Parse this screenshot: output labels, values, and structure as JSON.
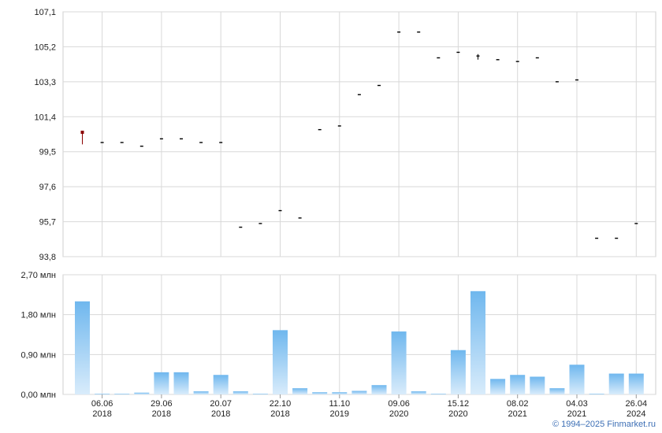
{
  "copyright": "© 1994–2025 Finmarket.ru",
  "chart_data": [
    {
      "type": "ohlc",
      "grid": true,
      "ylim": [
        93.8,
        107.1
      ],
      "y_ticks": [
        "107,1",
        "105,2",
        "103,3",
        "101,4",
        "99,5",
        "97,6",
        "95,7",
        "93,8"
      ],
      "y_tick_values": [
        107.1,
        105.2,
        103.3,
        101.4,
        99.5,
        97.6,
        95.7,
        93.8
      ],
      "points": [
        {
          "i": 0,
          "open": 100.5,
          "high": 100.6,
          "low": 99.9,
          "close": 100.6,
          "color": "#8b0000"
        },
        {
          "i": 1,
          "open": 100.0,
          "high": 100.0,
          "low": 100.0,
          "close": 100.0
        },
        {
          "i": 2,
          "open": 100.0,
          "high": 100.0,
          "low": 100.0,
          "close": 100.0
        },
        {
          "i": 3,
          "open": 99.8,
          "high": 99.8,
          "low": 99.8,
          "close": 99.8
        },
        {
          "i": 4,
          "open": 100.2,
          "high": 100.2,
          "low": 100.2,
          "close": 100.2
        },
        {
          "i": 5,
          "open": 100.2,
          "high": 100.2,
          "low": 100.2,
          "close": 100.2
        },
        {
          "i": 6,
          "open": 100.0,
          "high": 100.0,
          "low": 100.0,
          "close": 100.0
        },
        {
          "i": 7,
          "open": 100.0,
          "high": 100.0,
          "low": 100.0,
          "close": 100.0
        },
        {
          "i": 8,
          "open": 95.4,
          "high": 95.4,
          "low": 95.4,
          "close": 95.4
        },
        {
          "i": 9,
          "open": 95.6,
          "high": 95.6,
          "low": 95.6,
          "close": 95.6
        },
        {
          "i": 10,
          "open": 96.3,
          "high": 96.3,
          "low": 96.3,
          "close": 96.3
        },
        {
          "i": 11,
          "open": 95.9,
          "high": 95.9,
          "low": 95.9,
          "close": 95.9
        },
        {
          "i": 12,
          "open": 100.7,
          "high": 100.7,
          "low": 100.7,
          "close": 100.7
        },
        {
          "i": 13,
          "open": 100.9,
          "high": 100.9,
          "low": 100.9,
          "close": 100.9
        },
        {
          "i": 14,
          "open": 102.6,
          "high": 102.6,
          "low": 102.6,
          "close": 102.6
        },
        {
          "i": 15,
          "open": 103.1,
          "high": 103.1,
          "low": 103.1,
          "close": 103.1
        },
        {
          "i": 16,
          "open": 106.0,
          "high": 106.0,
          "low": 106.0,
          "close": 106.0
        },
        {
          "i": 17,
          "open": 106.0,
          "high": 106.0,
          "low": 106.0,
          "close": 106.0
        },
        {
          "i": 18,
          "open": 104.6,
          "high": 104.6,
          "low": 104.6,
          "close": 104.6
        },
        {
          "i": 19,
          "open": 104.9,
          "high": 104.9,
          "low": 104.9,
          "close": 104.9
        },
        {
          "i": 20,
          "open": 104.6,
          "high": 104.8,
          "low": 104.5,
          "close": 104.7
        },
        {
          "i": 21,
          "open": 104.5,
          "high": 104.5,
          "low": 104.5,
          "close": 104.5
        },
        {
          "i": 22,
          "open": 104.4,
          "high": 104.4,
          "low": 104.4,
          "close": 104.4
        },
        {
          "i": 23,
          "open": 104.6,
          "high": 104.6,
          "low": 104.6,
          "close": 104.6
        },
        {
          "i": 24,
          "open": 103.3,
          "high": 103.3,
          "low": 103.3,
          "close": 103.3
        },
        {
          "i": 25,
          "open": 103.4,
          "high": 103.4,
          "low": 103.4,
          "close": 103.4
        },
        {
          "i": 26,
          "open": 94.8,
          "high": 94.8,
          "low": 94.8,
          "close": 94.8
        },
        {
          "i": 27,
          "open": 94.8,
          "high": 94.8,
          "low": 94.8,
          "close": 94.8
        },
        {
          "i": 28,
          "open": 95.6,
          "high": 95.6,
          "low": 95.6,
          "close": 95.6
        }
      ]
    },
    {
      "type": "bar",
      "grid": true,
      "ylim": [
        0,
        2.7
      ],
      "y_ticks": [
        "2,70 млн",
        "1,80 млн",
        "0,90 млн",
        "0,00 млн"
      ],
      "y_tick_values": [
        2.7,
        1.8,
        0.9,
        0.0
      ],
      "values": [
        2.1,
        0.01,
        0.01,
        0.04,
        0.5,
        0.5,
        0.07,
        0.44,
        0.07,
        0.01,
        1.45,
        0.14,
        0.05,
        0.05,
        0.08,
        0.21,
        1.42,
        0.07,
        0.01,
        1.0,
        2.33,
        0.35,
        0.44,
        0.4,
        0.14,
        0.67,
        0.01,
        0.47,
        0.47
      ],
      "bar_color": "#6fb7ee"
    }
  ],
  "x_axis": {
    "ticks": [
      {
        "i": 1,
        "day": "06.06",
        "year": "2018"
      },
      {
        "i": 4,
        "day": "29.06",
        "year": "2018"
      },
      {
        "i": 7,
        "day": "20.07",
        "year": "2018"
      },
      {
        "i": 10,
        "day": "22.10",
        "year": "2018"
      },
      {
        "i": 13,
        "day": "11.10",
        "year": "2019"
      },
      {
        "i": 16,
        "day": "09.06",
        "year": "2020"
      },
      {
        "i": 19,
        "day": "15.12",
        "year": "2020"
      },
      {
        "i": 22,
        "day": "08.02",
        "year": "2021"
      },
      {
        "i": 25,
        "day": "04.03",
        "year": "2021"
      },
      {
        "i": 28,
        "day": "26.04",
        "year": "2024"
      }
    ]
  }
}
